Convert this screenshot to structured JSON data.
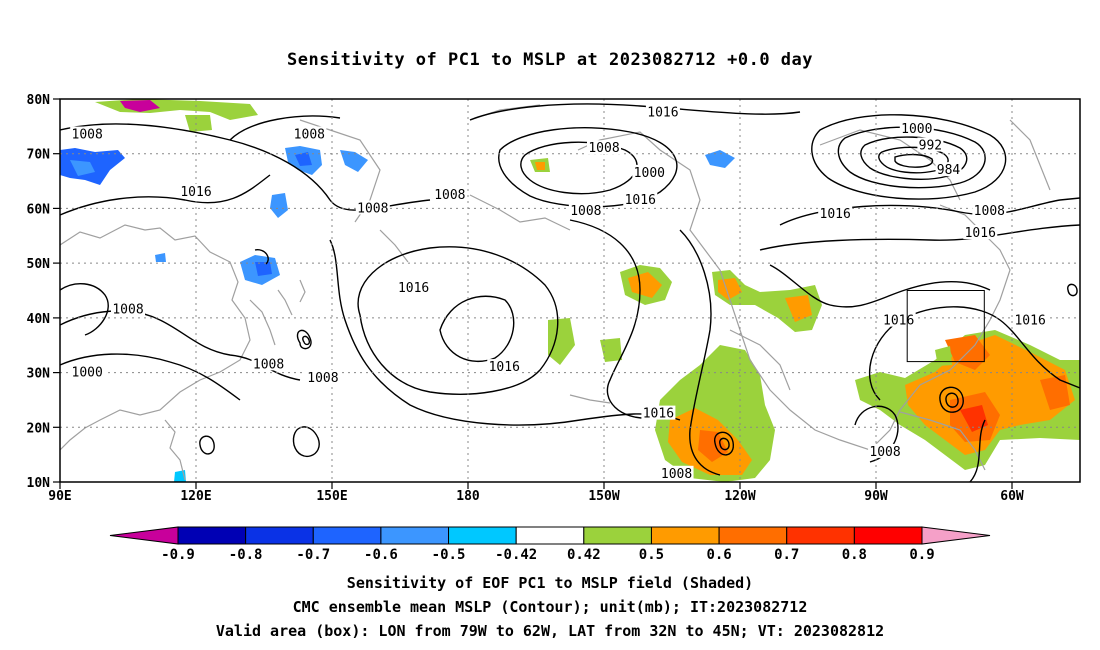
{
  "title": "Sensitivity of PC1 to MSLP at 2023082712 +0.0 day",
  "map": {
    "lat_labels": [
      "80N",
      "70N",
      "60N",
      "50N",
      "40N",
      "30N",
      "20N",
      "10N"
    ],
    "lon_labels": [
      "90E",
      "120E",
      "150E",
      "180",
      "150W",
      "120W",
      "90W",
      "60W"
    ],
    "contour_labels": [
      {
        "text": "1008",
        "lon": 96,
        "lat": 73.5
      },
      {
        "text": "1008",
        "lon": 145,
        "lat": 73.5
      },
      {
        "text": "1016",
        "lon": -137,
        "lat": 77.5
      },
      {
        "text": "1008",
        "lon": -150,
        "lat": 71
      },
      {
        "text": "1000",
        "lon": -140,
        "lat": 66.5
      },
      {
        "text": "1000",
        "lon": -81,
        "lat": 74.5
      },
      {
        "text": "992",
        "lon": -78,
        "lat": 71.5
      },
      {
        "text": "984",
        "lon": -74,
        "lat": 67
      },
      {
        "text": "1016",
        "lon": 120,
        "lat": 63
      },
      {
        "text": "1008",
        "lon": 159,
        "lat": 60
      },
      {
        "text": "1008",
        "lon": 176,
        "lat": 62.5
      },
      {
        "text": "1008",
        "lon": -154,
        "lat": 59.5
      },
      {
        "text": "1016",
        "lon": -142,
        "lat": 61.5
      },
      {
        "text": "1016",
        "lon": -99,
        "lat": 59
      },
      {
        "text": "1008",
        "lon": -65,
        "lat": 59.5
      },
      {
        "text": "1016",
        "lon": -67,
        "lat": 55.5
      },
      {
        "text": "1016",
        "lon": 168,
        "lat": 45.5
      },
      {
        "text": "1008",
        "lon": 105,
        "lat": 41.5
      },
      {
        "text": "1016",
        "lon": -85,
        "lat": 39.5
      },
      {
        "text": "1016",
        "lon": -56,
        "lat": 39.5
      },
      {
        "text": "1000",
        "lon": 96,
        "lat": 30
      },
      {
        "text": "1008",
        "lon": 136,
        "lat": 31.5
      },
      {
        "text": "1008",
        "lon": 148,
        "lat": 29
      },
      {
        "text": "1016",
        "lon": -172,
        "lat": 31
      },
      {
        "text": "1016",
        "lon": -138,
        "lat": 22.5
      },
      {
        "text": "1008",
        "lon": -88,
        "lat": 15.5
      },
      {
        "text": "1008",
        "lon": -134,
        "lat": 11.5
      }
    ]
  },
  "colorbar": {
    "labels": [
      "-0.9",
      "-0.8",
      "-0.7",
      "-0.6",
      "-0.5",
      "-0.42",
      "0.42",
      "0.5",
      "0.6",
      "0.7",
      "0.8",
      "0.9"
    ],
    "colors": [
      "#c8009b",
      "#0000b4",
      "#0a32e6",
      "#1e64ff",
      "#3c96ff",
      "#00c8ff",
      "#ffffff",
      "#9bd23c",
      "#ff9b00",
      "#ff6e00",
      "#ff3200",
      "#ff0000",
      "#f5a0c8"
    ]
  },
  "captions": {
    "line1": "Sensitivity of EOF PC1 to MSLP field (Shaded)",
    "line2": "CMC ensemble mean MSLP (Contour); unit(mb); IT:2023082712",
    "line3": "Valid area (box): LON from 79W to 62W, LAT from 32N to 45N; VT: 2023082812"
  }
}
